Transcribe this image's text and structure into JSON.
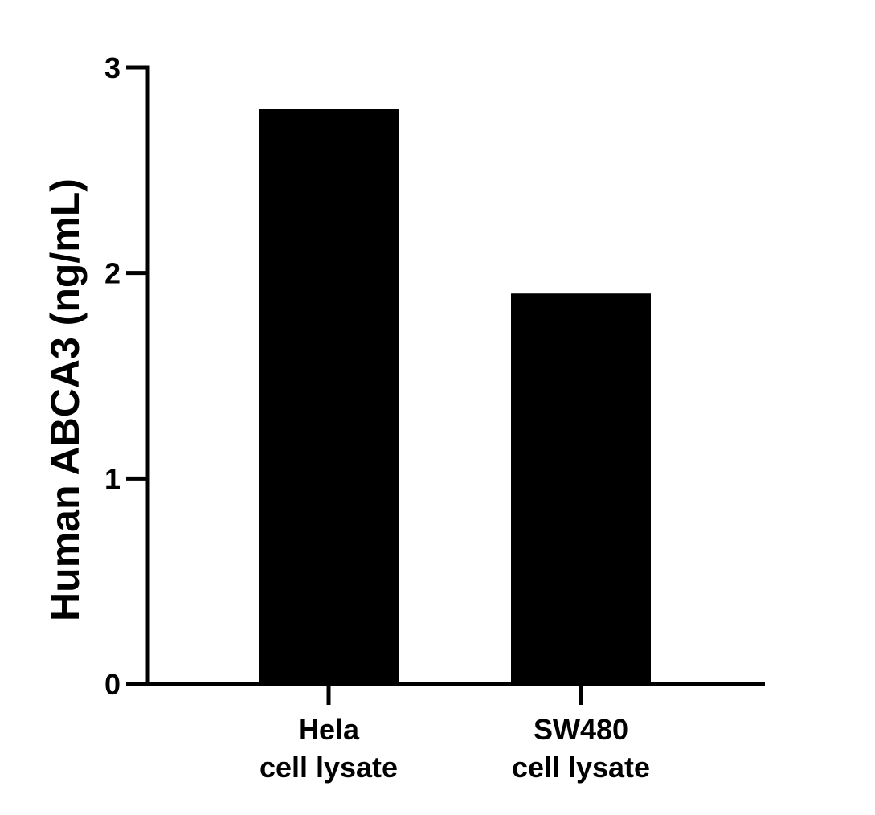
{
  "chart_data": {
    "type": "bar",
    "title": "",
    "xlabel": "",
    "ylabel": "Human ABCA3 (ng/mL)",
    "categories": [
      [
        "Hela",
        "cell lysate"
      ],
      [
        "SW480",
        "cell lysate"
      ]
    ],
    "values": [
      2.8,
      1.9
    ],
    "ylim": [
      0,
      3
    ],
    "yticks": [
      0,
      1,
      2,
      3
    ],
    "grid": false,
    "legend": "none",
    "bar_color": "#000000"
  }
}
